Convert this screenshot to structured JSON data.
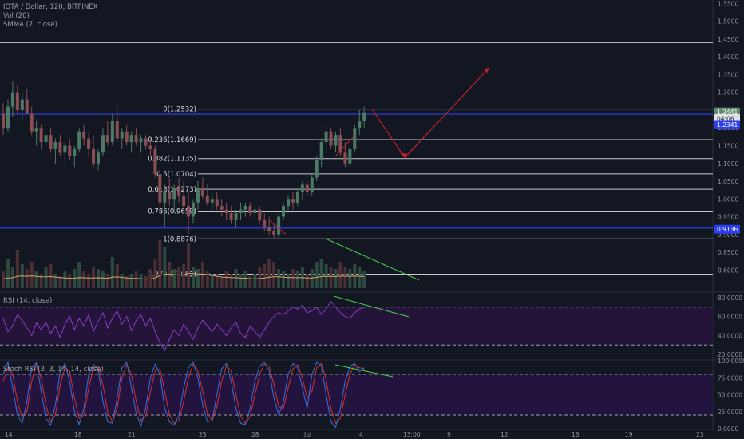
{
  "header": {
    "title": "IOTA / Dollar, 120, BITFINEX",
    "studies": [
      "Vol (20)",
      "SMMA (7, close)"
    ]
  },
  "rsi": {
    "title": "RSI (14, close)"
  },
  "stoch": {
    "title": "Stoch RSI (3, 3, 14, 14, close)"
  },
  "colors": {
    "background": "#131722",
    "candle_up": "#4d7a66",
    "candle_down": "#8a4e55",
    "fib_line": "#c8cad0",
    "blue_line": "#2b3ff0",
    "red_arrow": "#c0232b",
    "green_trend": "#4ad14a",
    "rsi_line": "#8a3ec7",
    "rsi_band": "#25143a",
    "stoch_k": "#3d6ee0",
    "stoch_d": "#d6312e",
    "stoch_band": "#23143f",
    "smma": "#d8a468"
  },
  "chart_data": {
    "type": "candlestick",
    "symbol": "IOTA / Dollar",
    "timeframe": "120",
    "exchange": "BITFINEX",
    "y_range": [
      0.74,
      1.56
    ],
    "price_ticks": [
      "1.5500",
      "1.5000",
      "1.4500",
      "1.4000",
      "1.3500",
      "1.3000",
      "1.2500",
      "1.2000",
      "1.1500",
      "1.1000",
      "1.0500",
      "1.0000",
      "0.9500",
      "0.9000",
      "0.8500",
      "0.8000"
    ],
    "x_ticks": [
      "14",
      "18",
      "21",
      "25",
      "28",
      "Jul",
      "4",
      "13:00",
      "9",
      "12",
      "16",
      "19",
      "23"
    ],
    "fib_levels": [
      {
        "label": "0(1.2532)",
        "value": 1.2532
      },
      {
        "label": "0.236(1.1669)",
        "value": 1.1669
      },
      {
        "label": "0.382(1.1135)",
        "value": 1.1135
      },
      {
        "label": "0.5(1.0704)",
        "value": 1.0704
      },
      {
        "label": "0.618(1.0273)",
        "value": 1.0273
      },
      {
        "label": "0.786(0.9659)",
        "value": 0.9659
      },
      {
        "label": "1(0.8876)",
        "value": 0.8876
      },
      {
        "label": "1.272(0.7882)",
        "value": 0.7882
      }
    ],
    "resistance_line": 1.44,
    "blue_lines": [
      1.2341,
      0.9136
    ],
    "price_badges": [
      {
        "label": "1.2441",
        "value": 1.2441,
        "color": "#5f8a6e"
      },
      {
        "label": "04:06",
        "value": 1.2252,
        "color": "#e0e2e6"
      },
      {
        "label": "1.2341",
        "value": 1.2085,
        "color": "#2b3ff0"
      },
      {
        "label": "0.9136",
        "value": 0.9136,
        "color": "#2b3ff0"
      }
    ],
    "candles": [
      {
        "o": 1.24,
        "h": 1.27,
        "l": 1.18,
        "c": 1.2
      },
      {
        "o": 1.2,
        "h": 1.28,
        "l": 1.19,
        "c": 1.26
      },
      {
        "o": 1.26,
        "h": 1.33,
        "l": 1.23,
        "c": 1.3
      },
      {
        "o": 1.3,
        "h": 1.32,
        "l": 1.24,
        "c": 1.25
      },
      {
        "o": 1.25,
        "h": 1.3,
        "l": 1.22,
        "c": 1.28
      },
      {
        "o": 1.28,
        "h": 1.31,
        "l": 1.24,
        "c": 1.24
      },
      {
        "o": 1.24,
        "h": 1.26,
        "l": 1.18,
        "c": 1.19
      },
      {
        "o": 1.19,
        "h": 1.22,
        "l": 1.15,
        "c": 1.2
      },
      {
        "o": 1.2,
        "h": 1.21,
        "l": 1.14,
        "c": 1.16
      },
      {
        "o": 1.16,
        "h": 1.19,
        "l": 1.12,
        "c": 1.18
      },
      {
        "o": 1.18,
        "h": 1.2,
        "l": 1.13,
        "c": 1.14
      },
      {
        "o": 1.14,
        "h": 1.17,
        "l": 1.1,
        "c": 1.16
      },
      {
        "o": 1.16,
        "h": 1.18,
        "l": 1.12,
        "c": 1.13
      },
      {
        "o": 1.13,
        "h": 1.16,
        "l": 1.1,
        "c": 1.15
      },
      {
        "o": 1.15,
        "h": 1.17,
        "l": 1.11,
        "c": 1.12
      },
      {
        "o": 1.12,
        "h": 1.15,
        "l": 1.09,
        "c": 1.14
      },
      {
        "o": 1.14,
        "h": 1.2,
        "l": 1.13,
        "c": 1.19
      },
      {
        "o": 1.19,
        "h": 1.21,
        "l": 1.15,
        "c": 1.17
      },
      {
        "o": 1.17,
        "h": 1.19,
        "l": 1.12,
        "c": 1.14
      },
      {
        "o": 1.14,
        "h": 1.18,
        "l": 1.09,
        "c": 1.1
      },
      {
        "o": 1.1,
        "h": 1.14,
        "l": 1.08,
        "c": 1.13
      },
      {
        "o": 1.13,
        "h": 1.2,
        "l": 1.12,
        "c": 1.18
      },
      {
        "o": 1.18,
        "h": 1.22,
        "l": 1.15,
        "c": 1.16
      },
      {
        "o": 1.16,
        "h": 1.24,
        "l": 1.15,
        "c": 1.22
      },
      {
        "o": 1.22,
        "h": 1.26,
        "l": 1.16,
        "c": 1.17
      },
      {
        "o": 1.17,
        "h": 1.2,
        "l": 1.14,
        "c": 1.19
      },
      {
        "o": 1.19,
        "h": 1.21,
        "l": 1.15,
        "c": 1.16
      },
      {
        "o": 1.16,
        "h": 1.19,
        "l": 1.13,
        "c": 1.18
      },
      {
        "o": 1.18,
        "h": 1.2,
        "l": 1.15,
        "c": 1.16
      },
      {
        "o": 1.16,
        "h": 1.18,
        "l": 1.13,
        "c": 1.17
      },
      {
        "o": 1.17,
        "h": 1.18,
        "l": 1.14,
        "c": 1.15
      },
      {
        "o": 1.15,
        "h": 1.17,
        "l": 1.12,
        "c": 1.14
      },
      {
        "o": 1.14,
        "h": 1.15,
        "l": 1.06,
        "c": 1.07
      },
      {
        "o": 1.07,
        "h": 1.09,
        "l": 0.97,
        "c": 0.99
      },
      {
        "o": 0.99,
        "h": 1.04,
        "l": 0.92,
        "c": 1.02
      },
      {
        "o": 1.02,
        "h": 1.06,
        "l": 0.98,
        "c": 1.0
      },
      {
        "o": 1.0,
        "h": 1.04,
        "l": 0.96,
        "c": 1.03
      },
      {
        "o": 1.03,
        "h": 1.06,
        "l": 0.99,
        "c": 1.01
      },
      {
        "o": 1.01,
        "h": 1.05,
        "l": 0.97,
        "c": 0.98
      },
      {
        "o": 0.98,
        "h": 1.02,
        "l": 0.9,
        "c": 0.95
      },
      {
        "o": 0.95,
        "h": 1.0,
        "l": 0.93,
        "c": 0.99
      },
      {
        "o": 0.99,
        "h": 1.05,
        "l": 0.97,
        "c": 1.03
      },
      {
        "o": 1.03,
        "h": 1.06,
        "l": 1.0,
        "c": 1.01
      },
      {
        "o": 1.01,
        "h": 1.04,
        "l": 0.98,
        "c": 0.99
      },
      {
        "o": 0.99,
        "h": 1.02,
        "l": 0.96,
        "c": 1.0
      },
      {
        "o": 1.0,
        "h": 1.02,
        "l": 0.97,
        "c": 0.98
      },
      {
        "o": 0.98,
        "h": 1.0,
        "l": 0.95,
        "c": 0.97
      },
      {
        "o": 0.97,
        "h": 0.99,
        "l": 0.94,
        "c": 0.96
      },
      {
        "o": 0.96,
        "h": 0.98,
        "l": 0.93,
        "c": 0.94
      },
      {
        "o": 0.94,
        "h": 0.97,
        "l": 0.92,
        "c": 0.96
      },
      {
        "o": 0.96,
        "h": 0.99,
        "l": 0.94,
        "c": 0.97
      },
      {
        "o": 0.97,
        "h": 0.99,
        "l": 0.95,
        "c": 0.98
      },
      {
        "o": 0.98,
        "h": 0.99,
        "l": 0.95,
        "c": 0.96
      },
      {
        "o": 0.96,
        "h": 0.98,
        "l": 0.94,
        "c": 0.97
      },
      {
        "o": 0.97,
        "h": 0.98,
        "l": 0.93,
        "c": 0.94
      },
      {
        "o": 0.94,
        "h": 0.96,
        "l": 0.91,
        "c": 0.92
      },
      {
        "o": 0.92,
        "h": 0.95,
        "l": 0.9,
        "c": 0.91
      },
      {
        "o": 0.91,
        "h": 0.93,
        "l": 0.89,
        "c": 0.9
      },
      {
        "o": 0.9,
        "h": 0.96,
        "l": 0.89,
        "c": 0.95
      },
      {
        "o": 0.95,
        "h": 0.99,
        "l": 0.94,
        "c": 0.98
      },
      {
        "o": 0.98,
        "h": 1.01,
        "l": 0.96,
        "c": 1.0
      },
      {
        "o": 1.0,
        "h": 1.02,
        "l": 0.97,
        "c": 0.99
      },
      {
        "o": 0.99,
        "h": 1.03,
        "l": 0.98,
        "c": 1.02
      },
      {
        "o": 1.02,
        "h": 1.05,
        "l": 1.0,
        "c": 1.04
      },
      {
        "o": 1.04,
        "h": 1.05,
        "l": 1.01,
        "c": 1.02
      },
      {
        "o": 1.02,
        "h": 1.07,
        "l": 1.01,
        "c": 1.06
      },
      {
        "o": 1.06,
        "h": 1.12,
        "l": 1.05,
        "c": 1.11
      },
      {
        "o": 1.11,
        "h": 1.17,
        "l": 1.09,
        "c": 1.16
      },
      {
        "o": 1.16,
        "h": 1.21,
        "l": 1.13,
        "c": 1.19
      },
      {
        "o": 1.19,
        "h": 1.2,
        "l": 1.14,
        "c": 1.15
      },
      {
        "o": 1.15,
        "h": 1.19,
        "l": 1.13,
        "c": 1.18
      },
      {
        "o": 1.18,
        "h": 1.2,
        "l": 1.12,
        "c": 1.13
      },
      {
        "o": 1.13,
        "h": 1.16,
        "l": 1.09,
        "c": 1.1
      },
      {
        "o": 1.1,
        "h": 1.15,
        "l": 1.09,
        "c": 1.14
      },
      {
        "o": 1.14,
        "h": 1.21,
        "l": 1.13,
        "c": 1.2
      },
      {
        "o": 1.2,
        "h": 1.25,
        "l": 1.18,
        "c": 1.22
      },
      {
        "o": 1.22,
        "h": 1.26,
        "l": 1.2,
        "c": 1.2441
      }
    ],
    "rsi": {
      "range": [
        15,
        85
      ],
      "ticks": [
        "80.0000",
        "60.0000",
        "40.0000",
        "20.0000"
      ],
      "overbought": 70,
      "oversold": 30,
      "values": [
        58,
        44,
        50,
        62,
        56,
        48,
        40,
        53,
        46,
        54,
        42,
        50,
        38,
        52,
        60,
        46,
        58,
        50,
        62,
        44,
        55,
        64,
        48,
        58,
        66,
        52,
        60,
        45,
        56,
        62,
        50,
        58,
        44,
        32,
        24,
        36,
        46,
        40,
        52,
        44,
        36,
        48,
        56,
        50,
        44,
        52,
        46,
        40,
        48,
        54,
        42,
        38,
        50,
        44,
        38,
        46,
        54,
        60,
        64,
        62,
        66,
        70,
        68,
        72,
        64,
        66,
        70,
        62,
        68,
        76,
        70,
        64,
        60,
        58,
        64,
        68,
        70
      ]
    },
    "stoch_rsi": {
      "range": [
        0,
        100
      ],
      "ticks": [
        "100.0000",
        "75.0000",
        "50.0000",
        "25.0000",
        "0.0000"
      ],
      "upper": 80,
      "lower": 20,
      "k": [
        80,
        98,
        60,
        20,
        8,
        40,
        90,
        97,
        55,
        15,
        5,
        35,
        85,
        96,
        70,
        25,
        6,
        30,
        80,
        95,
        88,
        40,
        10,
        8,
        45,
        90,
        98,
        60,
        22,
        4,
        30,
        75,
        95,
        80,
        30,
        10,
        5,
        20,
        60,
        90,
        98,
        75,
        35,
        10,
        12,
        50,
        88,
        96,
        70,
        30,
        8,
        6,
        30,
        70,
        92,
        98,
        85,
        45,
        20,
        40,
        80,
        96,
        90,
        60,
        30,
        80,
        98,
        92,
        50,
        10,
        2,
        30,
        70,
        92,
        96,
        84,
        90
      ],
      "d": [
        70,
        90,
        80,
        40,
        15,
        25,
        70,
        95,
        75,
        35,
        10,
        20,
        65,
        90,
        85,
        45,
        15,
        20,
        60,
        90,
        92,
        65,
        25,
        10,
        30,
        75,
        95,
        80,
        40,
        12,
        18,
        55,
        85,
        88,
        55,
        20,
        8,
        12,
        40,
        75,
        95,
        85,
        55,
        22,
        12,
        32,
        70,
        92,
        85,
        50,
        18,
        8,
        18,
        50,
        80,
        95,
        92,
        65,
        32,
        30,
        60,
        88,
        94,
        75,
        45,
        55,
        90,
        96,
        72,
        30,
        8,
        15,
        50,
        80,
        94,
        90,
        88
      ]
    },
    "volume": [
      0.35,
      0.6,
      0.45,
      0.8,
      0.5,
      0.4,
      0.55,
      0.35,
      0.3,
      0.45,
      0.5,
      0.3,
      0.25,
      0.35,
      0.3,
      0.4,
      0.55,
      0.35,
      0.3,
      0.45,
      0.4,
      0.35,
      0.3,
      0.65,
      0.5,
      0.3,
      0.25,
      0.3,
      0.35,
      0.3,
      0.25,
      0.4,
      0.6,
      1.0,
      0.85,
      0.55,
      0.4,
      0.45,
      0.5,
      0.95,
      0.45,
      0.4,
      0.55,
      0.35,
      0.3,
      0.3,
      0.25,
      0.35,
      0.3,
      0.4,
      0.3,
      0.35,
      0.25,
      0.3,
      0.45,
      0.5,
      0.6,
      0.55,
      0.4,
      0.35,
      0.3,
      0.4,
      0.35,
      0.45,
      0.3,
      0.4,
      0.55,
      0.6,
      0.5,
      0.45,
      0.4,
      0.55,
      0.45,
      0.4,
      0.5,
      0.45,
      0.35
    ],
    "projection_arrow": [
      [
        1.2532,
        0
      ],
      [
        1.116,
        1
      ],
      [
        1.37,
        2
      ]
    ]
  }
}
